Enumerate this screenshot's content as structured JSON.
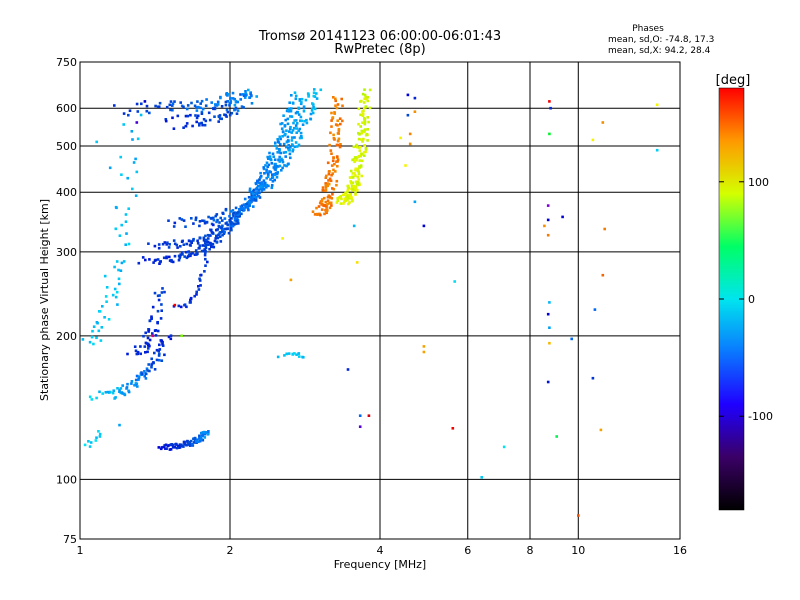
{
  "chart_data": {
    "type": "scatter",
    "title": "Tromsø 20141123 06:00:00-06:01:43",
    "subtitle": "RwPretec (8p)",
    "xlabel": "Frequency [MHz]",
    "ylabel": "Stationary phase Virtual Height [km]",
    "x_scale": "log",
    "y_scale": "log",
    "xlim": [
      1,
      16
    ],
    "ylim": [
      75,
      750
    ],
    "x_ticks": [
      1,
      2,
      4,
      6,
      8,
      10,
      16
    ],
    "y_ticks": [
      75,
      100,
      200,
      300,
      400,
      500,
      600,
      750
    ],
    "grid": true,
    "stats": {
      "heading": "Phases",
      "line1": "mean, sd,O: -74.8, 17.3",
      "line2": "mean, sd,X:  94.2, 28.4"
    },
    "colorbar": {
      "label": "[deg]",
      "range": [
        -180,
        180
      ],
      "ticks": [
        100,
        0,
        -100
      ],
      "colors": [
        "#000000",
        "#3a0066",
        "#1f00ff",
        "#0a78ff",
        "#00e5ee",
        "#00ff66",
        "#d4ff00",
        "#ff9900",
        "#ff0000"
      ]
    },
    "traces": [
      {
        "f0": 1.16,
        "f1": 2.2,
        "h0": 600,
        "h1": 640,
        "hue0": 225,
        "hue1": 200,
        "n": 70,
        "spread": 14
      },
      {
        "f0": 1.45,
        "f1": 2.2,
        "h0": 560,
        "h1": 640,
        "hue0": 230,
        "hue1": 210,
        "n": 70,
        "spread": 14
      },
      {
        "f0": 1.3,
        "f1": 2.7,
        "h0": 288,
        "h1": 640,
        "hue0": 230,
        "hue1": 200,
        "n": 200,
        "spread": 8
      },
      {
        "f0": 1.35,
        "f1": 2.85,
        "h0": 310,
        "h1": 645,
        "hue0": 228,
        "hue1": 198,
        "n": 180,
        "spread": 8
      },
      {
        "f0": 1.5,
        "f1": 3.0,
        "h0": 345,
        "h1": 650,
        "hue0": 222,
        "hue1": 195,
        "n": 150,
        "spread": 9
      },
      {
        "f0": 3.0,
        "f1": 3.3,
        "h0": 365,
        "h1": 640,
        "hue0": 28,
        "hue1": 30,
        "n": 120,
        "spread": 12
      },
      {
        "f0": 3.3,
        "f1": 3.75,
        "h0": 385,
        "h1": 645,
        "hue0": 65,
        "hue1": 70,
        "n": 170,
        "spread": 12
      },
      {
        "f0": 1.0,
        "f1": 1.28,
        "h0": 200,
        "h1": 560,
        "hue0": 190,
        "hue1": 195,
        "n": 60,
        "spread": 20
      },
      {
        "f0": 1.05,
        "f1": 1.5,
        "h0": 150,
        "h1": 200,
        "hue0": 190,
        "hue1": 230,
        "n": 80,
        "spread": 10
      },
      {
        "f0": 1.28,
        "f1": 1.45,
        "h0": 185,
        "h1": 250,
        "hue0": 230,
        "hue1": 225,
        "n": 50,
        "spread": 12
      },
      {
        "f0": 1.42,
        "f1": 1.8,
        "h0": 117,
        "h1": 125,
        "hue0": 235,
        "hue1": 205,
        "n": 90,
        "spread": 6
      },
      {
        "f0": 1.0,
        "f1": 1.1,
        "h0": 118,
        "h1": 125,
        "hue0": 185,
        "hue1": 190,
        "n": 10,
        "spread": 5
      },
      {
        "f0": 1.55,
        "f1": 1.85,
        "h0": 230,
        "h1": 350,
        "hue0": 230,
        "hue1": 225,
        "n": 35,
        "spread": 5
      },
      {
        "f0": 2.5,
        "f1": 2.8,
        "h0": 182,
        "h1": 182,
        "hue0": 190,
        "hue1": 190,
        "n": 14,
        "spread": 4
      }
    ],
    "scattered": [
      [
        4.55,
        640,
        240
      ],
      [
        4.7,
        630,
        230
      ],
      [
        4.7,
        590,
        35
      ],
      [
        4.55,
        580,
        220
      ],
      [
        4.6,
        530,
        32
      ],
      [
        4.6,
        505,
        35
      ],
      [
        4.5,
        455,
        60
      ],
      [
        4.4,
        520,
        60
      ],
      [
        4.7,
        382,
        200
      ],
      [
        4.9,
        340,
        240
      ],
      [
        4.9,
        190,
        40
      ],
      [
        4.9,
        185,
        40
      ],
      [
        3.65,
        136,
        215
      ],
      [
        3.8,
        136,
        355
      ],
      [
        3.65,
        129,
        265
      ],
      [
        3.6,
        285,
        55
      ],
      [
        3.55,
        340,
        195
      ],
      [
        3.45,
        170,
        230
      ],
      [
        2.65,
        262,
        40
      ],
      [
        2.55,
        320,
        60
      ],
      [
        5.6,
        128,
        0
      ],
      [
        5.65,
        260,
        185
      ],
      [
        6.4,
        101,
        190
      ],
      [
        7.1,
        117,
        185
      ],
      [
        8.75,
        620,
        0
      ],
      [
        8.8,
        600,
        230
      ],
      [
        8.75,
        530,
        130
      ],
      [
        8.7,
        375,
        275
      ],
      [
        8.7,
        350,
        240
      ],
      [
        8.55,
        340,
        35
      ],
      [
        8.7,
        325,
        30
      ],
      [
        8.75,
        235,
        195
      ],
      [
        8.7,
        222,
        240
      ],
      [
        8.75,
        208,
        200
      ],
      [
        8.75,
        193,
        45
      ],
      [
        8.7,
        160,
        235
      ],
      [
        9.05,
        123,
        140
      ],
      [
        9.7,
        197,
        215
      ],
      [
        9.3,
        355,
        240
      ],
      [
        10.0,
        84,
        20
      ],
      [
        10.7,
        515,
        60
      ],
      [
        11.2,
        560,
        35
      ],
      [
        11.3,
        335,
        30
      ],
      [
        11.2,
        268,
        25
      ],
      [
        10.8,
        227,
        215
      ],
      [
        10.7,
        163,
        225
      ],
      [
        11.1,
        127,
        40
      ],
      [
        14.4,
        610,
        60
      ],
      [
        14.4,
        490,
        190
      ],
      [
        1.25,
        580,
        220
      ],
      [
        1.3,
        560,
        260
      ],
      [
        1.35,
        620,
        240
      ],
      [
        1.15,
        450,
        200
      ],
      [
        1.08,
        510,
        190
      ],
      [
        1.55,
        345,
        230
      ],
      [
        1.6,
        200,
        90
      ],
      [
        1.55,
        232,
        0
      ],
      [
        1.4,
        200,
        320
      ],
      [
        1.2,
        130,
        200
      ]
    ]
  }
}
